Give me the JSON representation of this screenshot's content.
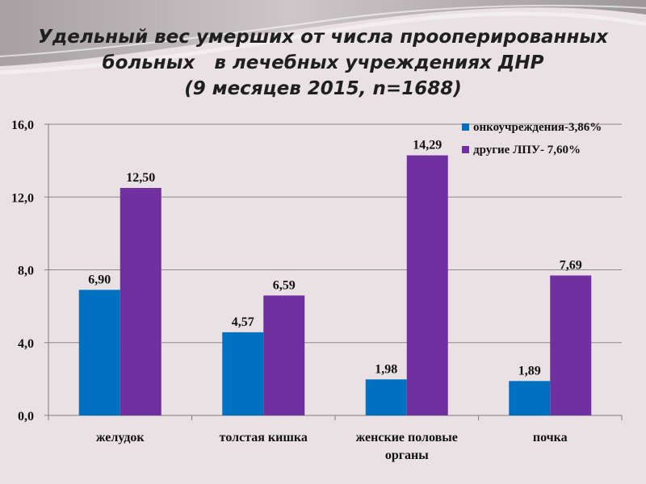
{
  "title_lines": [
    "Удельный вес умерших от числа прооперированных",
    "больных   в лечебных учреждениях ДНР",
    "(9 месяцев 2015, n=1688)"
  ],
  "colors": {
    "series1": "#0070c0",
    "series2": "#7030a0",
    "background": "#e9e1e3",
    "axis": "#808080"
  },
  "chart_data": {
    "type": "bar",
    "title": "Удельный вес умерших от числа прооперированных больных   в лечебных учреждениях ДНР (9 месяцев 2015, n=1688)",
    "categories": [
      [
        "желудок"
      ],
      [
        "толстая кишка"
      ],
      [
        "женские половые",
        "органы"
      ],
      [
        "почка"
      ]
    ],
    "series": [
      {
        "name": "онкоучреждения-3,86%",
        "values": [
          6.9,
          4.57,
          1.98,
          1.89
        ],
        "labels": [
          "6,90",
          "4,57",
          "1,98",
          "1,89"
        ]
      },
      {
        "name": "другие ЛПУ- 7,60%",
        "values": [
          12.5,
          6.59,
          14.29,
          7.69
        ],
        "labels": [
          "12,50",
          "6,59",
          "14,29",
          "7,69"
        ]
      }
    ],
    "ylim": [
      0,
      16
    ],
    "yticks": [
      0,
      4,
      8,
      12,
      16
    ],
    "ytick_labels": [
      "0,0",
      "4,0",
      "8,0",
      "12,0",
      "16,0"
    ],
    "grid": true,
    "legend": "top-right",
    "xlabel": "",
    "ylabel": ""
  }
}
